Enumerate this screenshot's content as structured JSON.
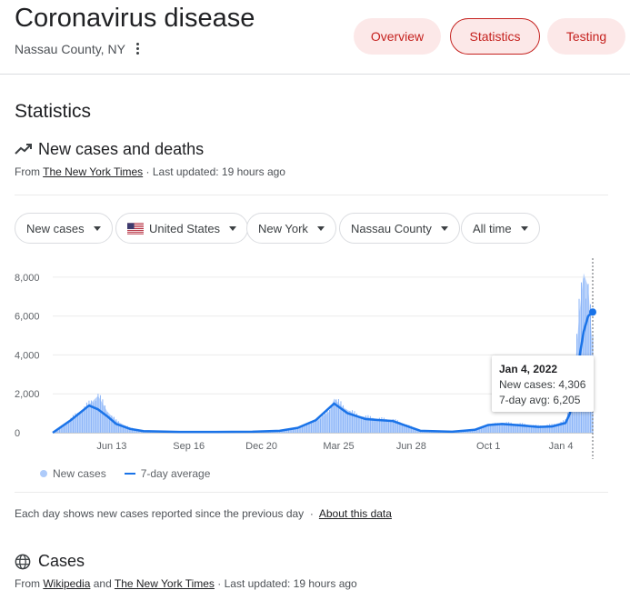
{
  "header": {
    "title": "Coronavirus disease",
    "location": "Nassau County, NY",
    "tabs": [
      {
        "label": "Overview",
        "active": false
      },
      {
        "label": "Statistics",
        "active": true
      },
      {
        "label": "Testing",
        "active": false
      }
    ]
  },
  "main": {
    "section_title": "Statistics",
    "chart_heading": "New cases and deaths",
    "source": {
      "prefix": "From",
      "link": "The New York Times",
      "updated": "· Last updated: 19 hours ago"
    },
    "filters": [
      {
        "label": "New cases"
      },
      {
        "label": "United States",
        "icon": "us-flag-icon"
      },
      {
        "label": "New York"
      },
      {
        "label": "Nassau County"
      },
      {
        "label": "All time"
      }
    ],
    "tooltip": {
      "date": "Jan 4, 2022",
      "new_cases": "New cases: 4,306",
      "avg": "7-day avg: 6,205"
    },
    "legend": {
      "new_cases": "New cases",
      "avg": "7-day average"
    },
    "note": {
      "text": "Each day shows new cases reported since the previous day",
      "sep": "·",
      "link": "About this data"
    },
    "cases": {
      "title": "Cases",
      "prefix": "From",
      "link1": "Wikipedia",
      "and": "and",
      "link2": "The New York Times",
      "updated": "· Last updated: 19 hours ago"
    }
  },
  "colors": {
    "accent": "#c5221f",
    "tab_bg": "#fce8e8",
    "bars": "#aecbfa",
    "line": "#1a73e8"
  },
  "chart_data": {
    "type": "area",
    "y_ticks": [
      "0",
      "2,000",
      "4,000",
      "6,000",
      "8,000"
    ],
    "x_ticks": [
      "Jun 13",
      "Sep 16",
      "Dec 20",
      "Mar 25",
      "Jun 28",
      "Oct 1",
      "Jan 4"
    ],
    "ylim": [
      0,
      8600
    ],
    "grid": true,
    "series": [
      {
        "name": "New cases",
        "style": "bars",
        "points": [
          [
            0,
            0
          ],
          [
            4,
            700
          ],
          [
            8,
            1450
          ],
          [
            10,
            1900
          ],
          [
            12,
            1100
          ],
          [
            14,
            600
          ],
          [
            17,
            250
          ],
          [
            20,
            100
          ],
          [
            28,
            50
          ],
          [
            36,
            40
          ],
          [
            44,
            60
          ],
          [
            50,
            100
          ],
          [
            54,
            250
          ],
          [
            58,
            600
          ],
          [
            61,
            1100
          ],
          [
            62,
            1750
          ],
          [
            64,
            1300
          ],
          [
            67,
            900
          ],
          [
            69,
            800
          ],
          [
            72,
            700
          ],
          [
            75,
            650
          ],
          [
            78,
            400
          ],
          [
            81,
            100
          ],
          [
            88,
            50
          ],
          [
            93,
            150
          ],
          [
            96,
            400
          ],
          [
            99,
            500
          ],
          [
            103,
            450
          ],
          [
            107,
            350
          ],
          [
            110,
            400
          ],
          [
            113,
            600
          ],
          [
            114,
            1300
          ],
          [
            115,
            3000
          ],
          [
            116,
            6000
          ],
          [
            117,
            8200
          ],
          [
            118,
            7500
          ],
          [
            119,
            4306
          ]
        ]
      },
      {
        "name": "7-day average",
        "style": "line",
        "points": [
          [
            0,
            0
          ],
          [
            4,
            650
          ],
          [
            8,
            1400
          ],
          [
            10,
            1200
          ],
          [
            12,
            850
          ],
          [
            14,
            450
          ],
          [
            17,
            200
          ],
          [
            20,
            80
          ],
          [
            28,
            40
          ],
          [
            36,
            40
          ],
          [
            44,
            50
          ],
          [
            50,
            100
          ],
          [
            54,
            250
          ],
          [
            58,
            650
          ],
          [
            62,
            1500
          ],
          [
            65,
            1000
          ],
          [
            69,
            700
          ],
          [
            72,
            650
          ],
          [
            75,
            600
          ],
          [
            78,
            350
          ],
          [
            81,
            100
          ],
          [
            88,
            50
          ],
          [
            93,
            150
          ],
          [
            96,
            400
          ],
          [
            99,
            450
          ],
          [
            103,
            380
          ],
          [
            107,
            300
          ],
          [
            110,
            320
          ],
          [
            113,
            500
          ],
          [
            114,
            1000
          ],
          [
            115,
            2400
          ],
          [
            116,
            3800
          ],
          [
            117,
            5200
          ],
          [
            118,
            6000
          ],
          [
            119,
            6205
          ]
        ]
      }
    ],
    "x_tick_pos": [
      13,
      30,
      46,
      63,
      79,
      96,
      112
    ],
    "highlight_x": 119
  }
}
